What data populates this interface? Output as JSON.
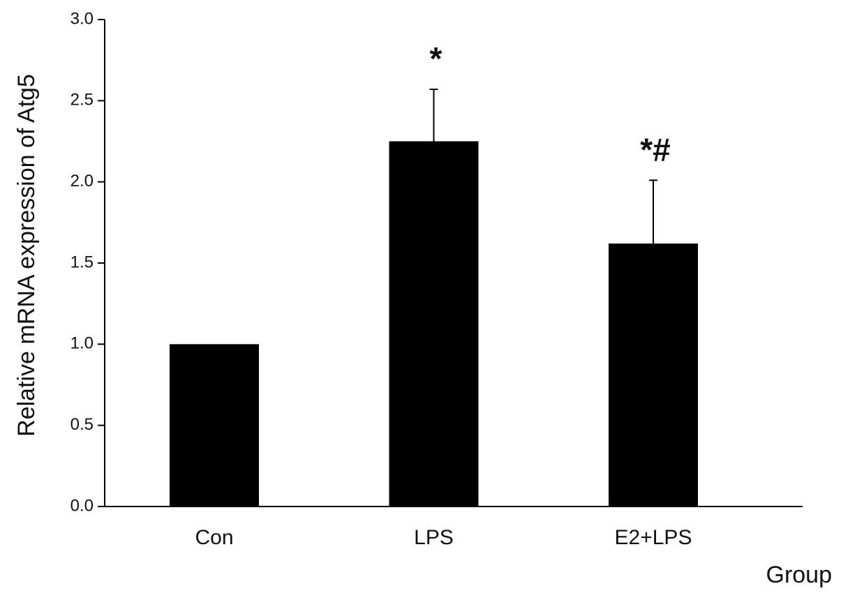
{
  "chart_data": {
    "type": "bar",
    "ylabel": "Relative mRNA expression of Atg5",
    "xlabel": "Group",
    "categories": [
      "Con",
      "LPS",
      "E2+LPS"
    ],
    "values": [
      1.0,
      2.25,
      1.62
    ],
    "errors": [
      0,
      0.32,
      0.39
    ],
    "annotations": [
      null,
      "*",
      "*#"
    ],
    "color": "#000000",
    "ylim": [
      0,
      3.0
    ],
    "yticks": [
      {
        "value": 0,
        "label": "0.0"
      },
      0.5,
      {
        "value": 1,
        "label": "1.0"
      },
      1.5,
      {
        "value": 2,
        "label": "2.0"
      },
      2.5,
      {
        "value": 3,
        "label": "3.0"
      }
    ],
    "grid": false
  }
}
